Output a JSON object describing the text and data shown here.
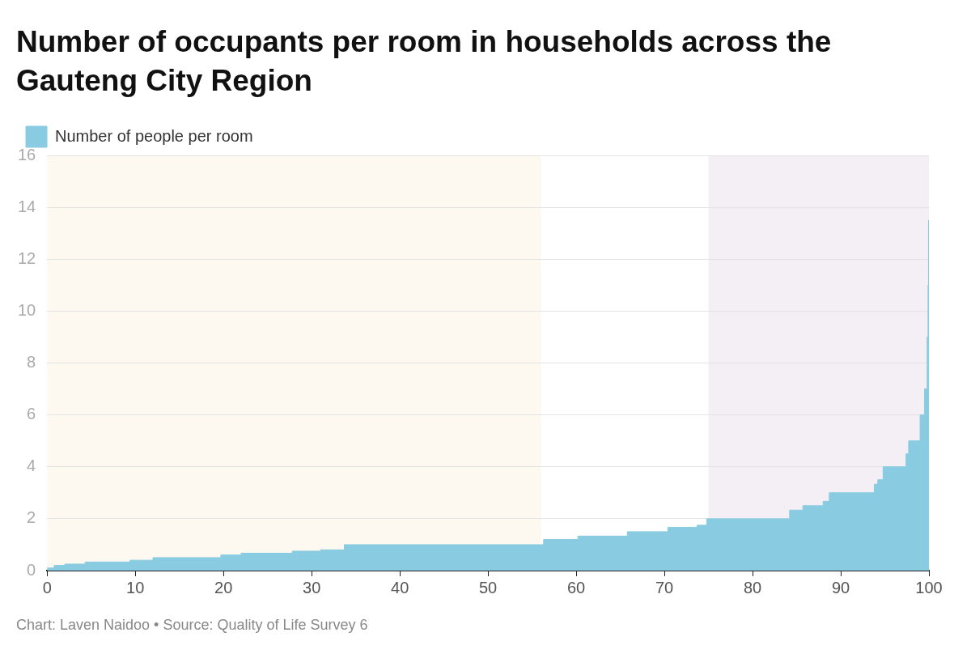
{
  "chart_data": {
    "type": "area",
    "title": "Number of occupants per room in households across the Gauteng City Region",
    "x": [
      0,
      0.8,
      0.8,
      2,
      2,
      4.3,
      4.3,
      9.4,
      9.4,
      12,
      12,
      19.7,
      19.7,
      22,
      22,
      27.8,
      27.8,
      31,
      31,
      33.7,
      33.7,
      56.3,
      56.3,
      60.2,
      60.2,
      65.8,
      65.8,
      70.4,
      70.4,
      73.7,
      73.7,
      74.8,
      74.8,
      84.2,
      84.2,
      85.7,
      85.7,
      88.0,
      88.0,
      88.7,
      88.7,
      93.8,
      93.8,
      94.2,
      94.2,
      94.8,
      94.8,
      97.4,
      97.4,
      97.7,
      97.7,
      99.0,
      99.0,
      99.5,
      99.5,
      99.8,
      99.8,
      99.9,
      99.9,
      99.95,
      99.95,
      100
    ],
    "series": [
      {
        "name": "Number of people per room",
        "color": "#89cce2",
        "values": [
          0.1,
          0.1,
          0.2,
          0.2,
          0.25,
          0.25,
          0.33,
          0.33,
          0.4,
          0.4,
          0.5,
          0.5,
          0.6,
          0.6,
          0.67,
          0.67,
          0.75,
          0.75,
          0.8,
          0.8,
          1,
          1,
          1.2,
          1.2,
          1.33,
          1.33,
          1.5,
          1.5,
          1.67,
          1.67,
          1.75,
          1.75,
          2,
          2,
          2.33,
          2.33,
          2.5,
          2.5,
          2.67,
          2.67,
          3,
          3,
          3.33,
          3.33,
          3.5,
          3.5,
          4,
          4,
          4.5,
          4.5,
          5,
          5,
          6,
          6,
          7,
          7,
          9,
          9,
          11,
          11,
          13.5,
          13.5
        ]
      }
    ],
    "xlim": [
      0,
      100
    ],
    "xticks": [
      0,
      10,
      20,
      30,
      40,
      50,
      60,
      70,
      80,
      90,
      100
    ],
    "ylim": [
      0,
      16
    ],
    "yticks": [
      0,
      2,
      4,
      6,
      8,
      10,
      12,
      14,
      16
    ],
    "bands": [
      {
        "axis": "x",
        "from": 0,
        "to": 56,
        "color": "#fdf8f0"
      },
      {
        "axis": "x",
        "from": 75,
        "to": 100,
        "color": "#f4eef5"
      }
    ],
    "grid": "y",
    "legend": "top left",
    "annotations": [
      "Chart: Laven Naidoo • Source: Quality of Life Survey 6"
    ]
  }
}
